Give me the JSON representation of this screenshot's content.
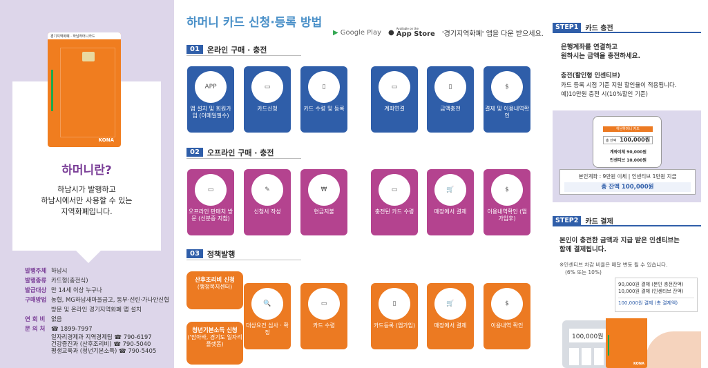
{
  "left": {
    "card_top_label": "경기지역화폐 · 하남하머니카드",
    "card_brand": "KONA",
    "question": "하머니란?",
    "desc_lines": [
      "하남시가 발행하고",
      "하남시에서만 사용할 수 있는",
      "지역화폐입니다."
    ],
    "info": [
      {
        "k": "발행주체",
        "v": "하남시"
      },
      {
        "k": "발행종류",
        "v": "카드형(충전식)"
      },
      {
        "k": "발급대상",
        "v": "만 14세 이상 누구나"
      },
      {
        "k": "구매방법",
        "v": "농협, MG하남새마을금고, 동부·선린·가나안신협"
      },
      {
        "k": "",
        "v": "방문 및 온라인 경기지역화폐 앱 설치"
      },
      {
        "k": "연 회 비",
        "v": "없음"
      },
      {
        "k": "문 의 처",
        "v": "☎ 1899-7997"
      },
      {
        "k": "",
        "v": "일자리경제과 지역경제팀 ☎ 790-6197"
      },
      {
        "k": "",
        "v": "건강증진과 (산후조리비) ☎ 790-5040"
      },
      {
        "k": "",
        "v": "평생교육과 (청년기본소득) ☎ 790-5405"
      }
    ]
  },
  "main": {
    "title": "하머니 카드 신청·등록 방법",
    "google_play": "Google Play",
    "app_store": "App Store",
    "app_store_small": "Available on the",
    "store_text": "'경기지역화폐' 앱을 다운 받으세요.",
    "sec1": {
      "num": "01",
      "label": "온라인 구매 · 충전"
    },
    "sec2": {
      "num": "02",
      "label": "오프라인 구매 · 충전"
    },
    "sec3": {
      "num": "03",
      "label": "정책발행"
    },
    "online": [
      {
        "icon": "APP",
        "label": "앱 설치 및 회원가입 (이메일필수)"
      },
      {
        "icon": "▭",
        "label": "카드신청"
      },
      {
        "icon": "▯",
        "label": "카드 수령 및 등록"
      },
      {
        "icon": "▭",
        "label": "계좌연결"
      },
      {
        "icon": "▯",
        "label": "금액충전"
      },
      {
        "icon": "$",
        "label": "결제 및 이용내역확인"
      }
    ],
    "offline": [
      {
        "icon": "▭",
        "label": "오프라인 판매처 방문 (신분증 지참)"
      },
      {
        "icon": "✎",
        "label": "신청서 작성"
      },
      {
        "icon": "₩",
        "label": "현금지불"
      },
      {
        "icon": "▭",
        "label": "충전된 카드 수령"
      },
      {
        "icon": "🛒",
        "label": "매장에서 결제"
      },
      {
        "icon": "$",
        "label": "이용내역확인 (앱 가입후)"
      }
    ],
    "policy_sources": [
      {
        "title": "산후조리비 신청",
        "sub": "(행정복지센터)"
      },
      {
        "title": "청년기본소득 신청",
        "sub": "('잡아바, 경기도 일자리 플랫폼)"
      }
    ],
    "policy": [
      {
        "icon": "🔍",
        "label": "대상요건 심사 · 확정"
      },
      {
        "icon": "▭",
        "label": "카드 수령"
      },
      {
        "icon": "▯",
        "label": "카드등록 (앱가입)"
      },
      {
        "icon": "🛒",
        "label": "매장에서 결제"
      },
      {
        "icon": "$",
        "label": "이용내역 확인"
      }
    ]
  },
  "right": {
    "step1_tag": "STEP1",
    "step1_title": "카드 충전",
    "step1_lead1": "은행계좌를 연결하고",
    "step1_lead2": "원하시는 금액을 충전하세요.",
    "step1_sub": "충전(할인형 인센티브)",
    "step1_line1": "카드 등록 시점 기준 지원 할인율이 적용됩니다.",
    "step1_line2": "예)10만원 충전 시(10%할인 기준)",
    "phone_bar": "하남하머니 카드",
    "phone_amt_label": "총 잔액",
    "phone_amt": "100,000원",
    "phone_r1": "계좌이체 90,000원",
    "phone_r2": "인센티브 10,000원",
    "box_line": "본인계좌 : 9만원 이체 | 인센티브 1만원 지급",
    "box_total": "총 잔액 100,000원",
    "step2_tag": "STEP2",
    "step2_title": "카드 결제",
    "step2_lead1": "본인이 충전한 금액과 지급 받은 인센티브는",
    "step2_lead2": "함께 결제됩니다.",
    "note1": "※인센티브 차감 비율은 매달 변동 될 수 있습니다.",
    "note2": "(6% 또는 10%)",
    "receipt1": "90,000원 결제 (본인 충전잔액)",
    "receipt2": "10,000원 결제 (인센티브 잔액)",
    "receipt3": "100,000원 결제 (총 결제액)",
    "calc_amt": "100,000원",
    "card_brand": "KONA"
  }
}
